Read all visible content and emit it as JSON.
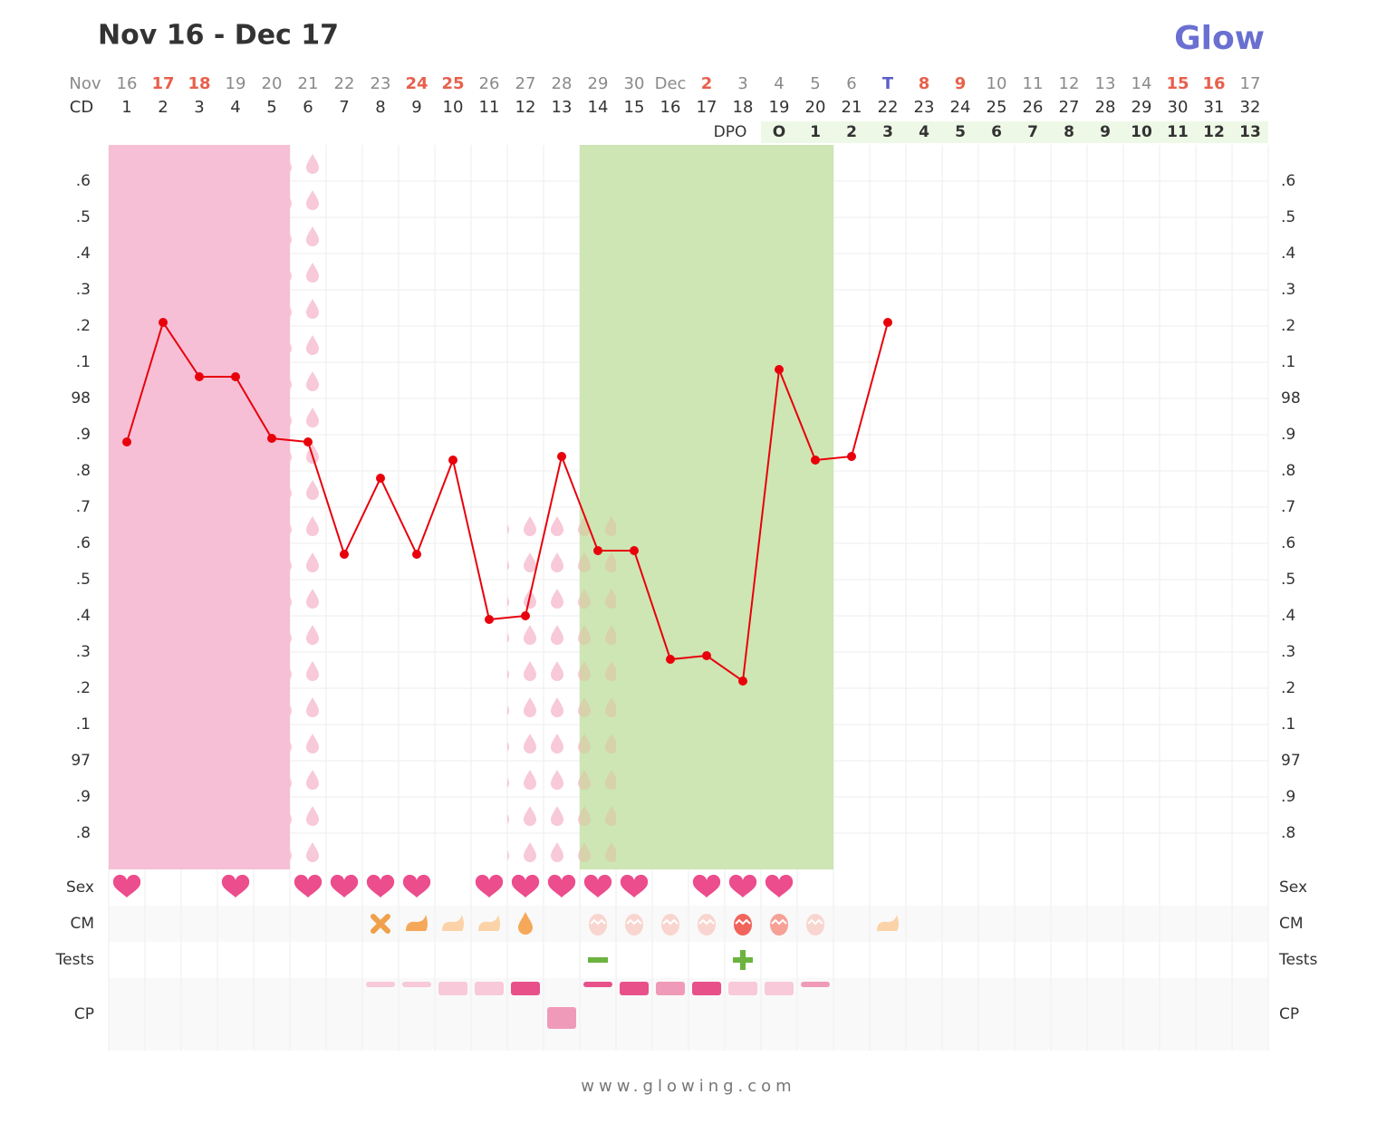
{
  "chart_data": {
    "type": "line",
    "title": "Nov 16 - Dec 17",
    "logo": "Glow",
    "footer": "www.glowing.com",
    "month_label": "Nov",
    "dates": [
      16,
      17,
      18,
      19,
      20,
      21,
      22,
      23,
      24,
      25,
      26,
      27,
      28,
      29,
      30,
      "Dec",
      2,
      3,
      4,
      5,
      6,
      "T",
      8,
      9,
      10,
      11,
      12,
      13,
      14,
      15,
      16,
      17
    ],
    "date_colors": [
      "#8a8a8a",
      "#e8604c",
      "#e8604c",
      "#8a8a8a",
      "#8a8a8a",
      "#8a8a8a",
      "#8a8a8a",
      "#8a8a8a",
      "#e8604c",
      "#e8604c",
      "#8a8a8a",
      "#8a8a8a",
      "#8a8a8a",
      "#8a8a8a",
      "#8a8a8a",
      "#8a8a8a",
      "#e8604c",
      "#8a8a8a",
      "#8a8a8a",
      "#8a8a8a",
      "#8a8a8a",
      "#5b5fc7",
      "#e8604c",
      "#e8604c",
      "#8a8a8a",
      "#8a8a8a",
      "#8a8a8a",
      "#8a8a8a",
      "#8a8a8a",
      "#e8604c",
      "#e8604c",
      "#8a8a8a"
    ],
    "cd_label": "CD",
    "cd": [
      1,
      2,
      3,
      4,
      5,
      6,
      7,
      8,
      9,
      10,
      11,
      12,
      13,
      14,
      15,
      16,
      17,
      18,
      19,
      20,
      21,
      22,
      23,
      24,
      25,
      26,
      27,
      28,
      29,
      30,
      31,
      32
    ],
    "dpo_label": "DPO",
    "dpo": [
      "O",
      1,
      2,
      3,
      4,
      5,
      6,
      7,
      8,
      9,
      10,
      11,
      12,
      13
    ],
    "ylim": [
      96.7,
      98.7
    ],
    "yticks": [
      {
        "value": 96.8,
        "label": ".8"
      },
      {
        "value": 96.9,
        "label": ".9"
      },
      97,
      {
        "value": 97.1,
        "label": ".1"
      },
      {
        "value": 97.2,
        "label": ".2"
      },
      {
        "value": 97.3,
        "label": ".3"
      },
      {
        "value": 97.4,
        "label": ".4"
      },
      {
        "value": 97.5,
        "label": ".5"
      },
      {
        "value": 97.6,
        "label": ".6"
      },
      {
        "value": 97.7,
        "label": ".7"
      },
      {
        "value": 97.8,
        "label": ".8"
      },
      {
        "value": 97.9,
        "label": ".9"
      },
      98,
      {
        "value": 98.1,
        "label": ".1"
      },
      {
        "value": 98.2,
        "label": ".2"
      },
      {
        "value": 98.3,
        "label": ".3"
      },
      {
        "value": 98.4,
        "label": ".4"
      },
      {
        "value": 98.5,
        "label": ".5"
      },
      {
        "value": 98.6,
        "label": ".6"
      }
    ],
    "grid": true,
    "series": [
      {
        "color": "#e8000b",
        "values": [
          97.88,
          98.21,
          98.06,
          98.06,
          97.89,
          97.88,
          97.57,
          97.78,
          97.57,
          97.83,
          97.39,
          97.4,
          97.84,
          97.58,
          97.58,
          97.28,
          97.29,
          97.22,
          98.08,
          97.83,
          97.84,
          98.21,
          null,
          null,
          null,
          null,
          null,
          null,
          null,
          null,
          null,
          null
        ]
      }
    ],
    "row_labels": [
      "Sex",
      "CM",
      "Tests",
      "CP"
    ]
  }
}
